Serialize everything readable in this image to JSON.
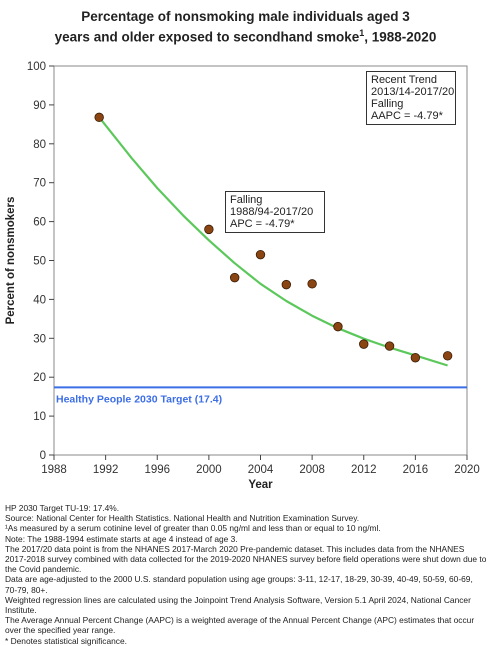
{
  "title_line1": "Percentage of nonsmoking male individuals aged 3",
  "title_line2": "years and older exposed to secondhand smoke",
  "title_sup": "1",
  "title_suffix": ", 1988-2020",
  "chart_data": {
    "type": "scatter",
    "xlabel": "Year",
    "ylabel": "Percent of nonsmokers",
    "xlim": [
      1988,
      2020
    ],
    "ylim": [
      0,
      100
    ],
    "xticks": [
      1988,
      1992,
      1996,
      2000,
      2004,
      2008,
      2012,
      2016,
      2020
    ],
    "yticks": [
      0,
      10,
      20,
      30,
      40,
      50,
      60,
      70,
      80,
      90,
      100
    ],
    "grid": false,
    "series": [
      {
        "name": "",
        "kind": "observed",
        "color": "#8B4513",
        "x": [
          1991.5,
          2000,
          2002,
          2004,
          2006,
          2008,
          2010,
          2012,
          2014,
          2016,
          2018.5
        ],
        "y": [
          86.8,
          58.0,
          45.6,
          51.5,
          43.8,
          44.0,
          33.0,
          28.5,
          28.0,
          25.0,
          25.5
        ]
      },
      {
        "name": "",
        "kind": "trend",
        "color": "#5cc85c",
        "x": [
          1991.5,
          1994,
          1996,
          1998,
          2000,
          2002,
          2004,
          2006,
          2008,
          2010,
          2012,
          2014,
          2016,
          2018.5
        ],
        "y": [
          86.8,
          76.4,
          68.6,
          61.6,
          55.2,
          49.3,
          44.0,
          39.6,
          35.8,
          32.6,
          29.9,
          27.6,
          25.6,
          23.0
        ]
      }
    ],
    "target": {
      "label": "Healthy People 2030 Target (17.4)",
      "value": 17.4,
      "color": "#3c6ee6"
    }
  },
  "trend_box": [
    "Recent Trend",
    "2013/14-2017/20",
    "Falling",
    "AAPC = -4.79*"
  ],
  "apc_box": [
    "Falling",
    "1988/94-2017/20",
    "APC = -4.79*"
  ],
  "notes": [
    "HP 2030 Target TU-19: 17.4%.",
    "Source: National Center for Health Statistics. National Health and Nutrition Examination Survey.",
    "¹As measured by a serum cotinine level of greater than 0.05 ng/ml and less than or equal to 10 ng/ml.",
    "Note: The 1988-1994 estimate starts at age 4 instead of age 3.",
    "The 2017/20 data point is from the NHANES 2017-March 2020 Pre-pandemic dataset. This includes data from the NHANES 2017-2018 survey combined with data collected for the 2019-2020 NHANES survey before field operations were shut down due to the Covid pandemic.",
    "Data are age-adjusted to the 2000 U.S. standard population using age groups: 3-11, 12-17, 18-29, 30-39, 40-49, 50-59, 60-69, 70-79, 80+.",
    "Weighted regression lines are calculated using the Joinpoint Trend Analysis Software, Version 5.1 April 2024, National Cancer Institute.",
    "The Average Annual Percent Change (AAPC) is a weighted average of the Annual Percent Change (APC) estimates that occur over the specified year range.",
    "* Denotes statistical significance."
  ]
}
